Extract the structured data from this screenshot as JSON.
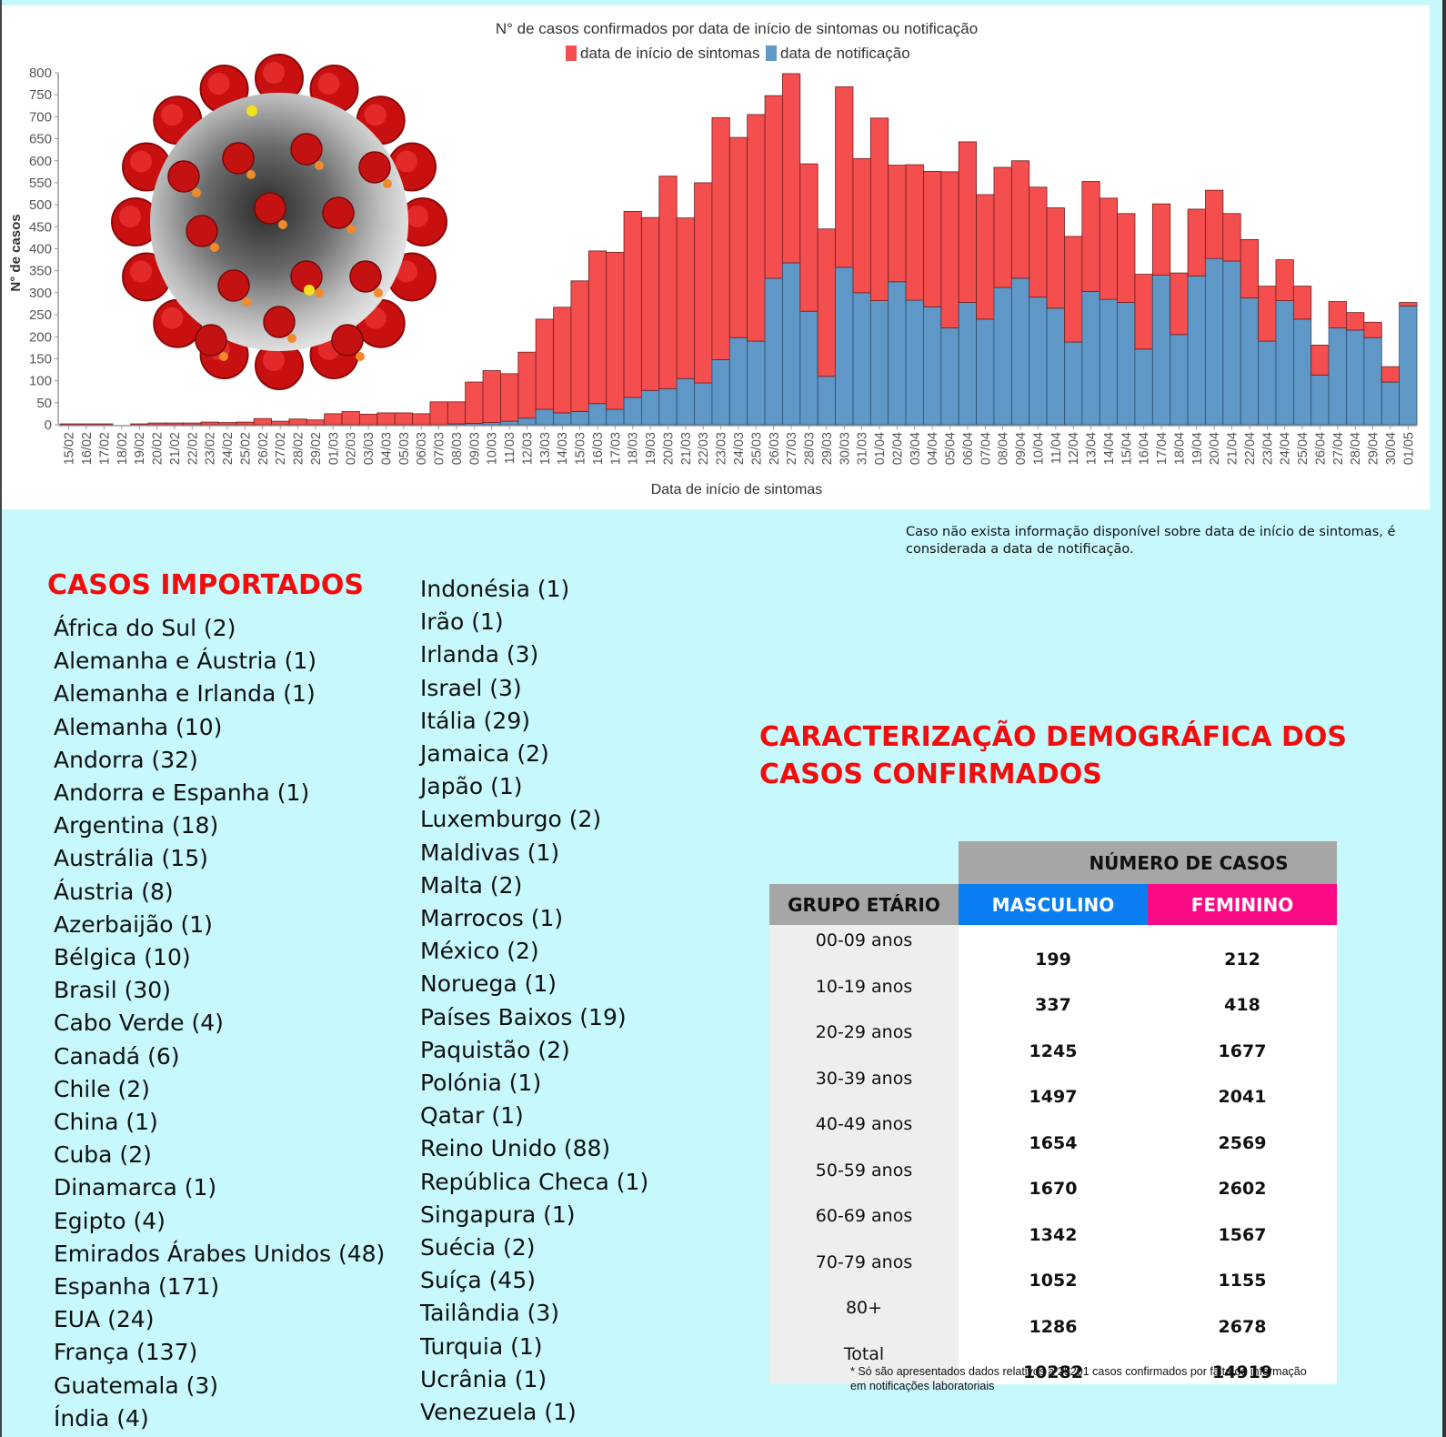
{
  "chart_data": {
    "type": "bar",
    "stacked": true,
    "title": "N° de casos confirmados por data de início de sintomas ou notificação",
    "xlabel": "Data de início de sintomas",
    "ylabel": "N° de casos",
    "ylim": [
      0,
      800
    ],
    "yticks": [
      0,
      50,
      100,
      150,
      200,
      250,
      300,
      350,
      400,
      450,
      500,
      550,
      600,
      650,
      700,
      750,
      800
    ],
    "grid": false,
    "legend_position": "top-center",
    "colors": {
      "sintomas": "#f44e4e",
      "notificacao": "#5f97c6"
    },
    "categories": [
      "15/02",
      "16/02",
      "17/02",
      "18/02",
      "19/02",
      "20/02",
      "21/02",
      "22/02",
      "23/02",
      "24/02",
      "25/02",
      "26/02",
      "27/02",
      "28/02",
      "29/02",
      "01/03",
      "02/03",
      "03/03",
      "04/03",
      "05/03",
      "06/03",
      "07/03",
      "08/03",
      "09/03",
      "10/03",
      "11/03",
      "12/03",
      "13/03",
      "14/03",
      "15/03",
      "16/03",
      "17/03",
      "18/03",
      "19/03",
      "20/03",
      "21/03",
      "22/03",
      "23/03",
      "24/03",
      "25/03",
      "26/03",
      "27/03",
      "28/03",
      "29/03",
      "30/03",
      "31/03",
      "01/04",
      "02/04",
      "03/04",
      "04/04",
      "05/04",
      "06/04",
      "07/04",
      "08/04",
      "09/04",
      "10/04",
      "11/04",
      "12/04",
      "13/04",
      "14/04",
      "15/04",
      "16/04",
      "17/04",
      "18/04",
      "19/04",
      "20/04",
      "21/04",
      "22/04",
      "23/04",
      "24/04",
      "25/04",
      "26/04",
      "27/04",
      "28/04",
      "29/04",
      "30/04",
      "01/05"
    ],
    "series": [
      {
        "name": "data de notificação",
        "values": [
          0,
          0,
          0,
          0,
          0,
          0,
          0,
          0,
          0,
          0,
          0,
          0,
          0,
          0,
          0,
          0,
          0,
          0,
          0,
          0,
          0,
          0,
          2,
          3,
          5,
          8,
          15,
          35,
          27,
          30,
          48,
          35,
          62,
          78,
          82,
          105,
          95,
          148,
          198,
          190,
          333,
          368,
          258,
          110,
          358,
          300,
          282,
          325,
          283,
          268,
          220,
          278,
          240,
          312,
          333,
          290,
          265,
          188,
          303,
          285,
          278,
          172,
          340,
          205,
          338,
          378,
          372,
          288,
          190,
          282,
          240,
          113,
          220,
          215,
          198,
          97,
          270
        ]
      },
      {
        "name": "data de início de sintomas",
        "values": [
          2,
          2,
          2,
          0,
          2,
          4,
          4,
          4,
          6,
          5,
          6,
          14,
          8,
          13,
          11,
          25,
          30,
          24,
          27,
          27,
          25,
          52,
          50,
          94,
          118,
          108,
          150,
          205,
          240,
          297,
          347,
          357,
          423,
          393,
          483,
          365,
          455,
          550,
          455,
          515,
          415,
          430,
          335,
          335,
          410,
          305,
          415,
          265,
          308,
          308,
          355,
          365,
          283,
          273,
          267,
          250,
          228,
          240,
          250,
          230,
          202,
          170,
          162,
          140,
          152,
          155,
          108,
          133,
          125,
          93,
          75,
          68,
          60,
          40,
          35,
          35,
          8
        ]
      }
    ]
  },
  "chart_labels": {
    "legend": [
      "data de início de sintomas",
      "data de notificação"
    ]
  },
  "note_top": "Caso não exista informação disponível sobre data de início de sintomas, é considerada a data de notificação.",
  "imported": {
    "title": "CASOS IMPORTADOS",
    "col1": [
      "África do Sul (2)",
      "Alemanha e Áustria (1)",
      "Alemanha e Irlanda (1)",
      "Alemanha (10)",
      "Andorra (32)",
      "Andorra e Espanha (1)",
      "Argentina (18)",
      "Austrália (15)",
      "Áustria (8)",
      "Azerbaijão (1)",
      "Bélgica (10)",
      "Brasil (30)",
      "Cabo Verde (4)",
      "Canadá (6)",
      "Chile (2)",
      "China (1)",
      "Cuba (2)",
      "Dinamarca (1)",
      "Egipto (4)",
      "Emirados Árabes Unidos (48)",
      "Espanha (171)",
      "EUA (24)",
      "França (137)",
      "Guatemala (3)",
      "Índia (4)"
    ],
    "col2": [
      "Indonésia (1)",
      "Irão (1)",
      "Irlanda (3)",
      "Israel (3)",
      "Itália (29)",
      "Jamaica (2)",
      "Japão (1)",
      "Luxemburgo (2)",
      "Maldivas (1)",
      "Malta (2)",
      "Marrocos (1)",
      "México (2)",
      "Noruega (1)",
      "Países Baixos (19)",
      "Paquistão (2)",
      "Polónia (1)",
      "Qatar (1)",
      "Reino Unido (88)",
      "República Checa (1)",
      "Singapura (1)",
      "Suécia (2)",
      "Suíça (45)",
      "Tailândia (3)",
      "Turquia (1)",
      "Ucrânia (1)",
      "Venezuela (1)"
    ]
  },
  "demographics": {
    "title_line1": "CARACTERIZAÇÃO DEMOGRÁFICA DOS",
    "title_line2": "CASOS CONFIRMADOS",
    "header_cases": "NÚMERO DE CASOS",
    "header_age": "GRUPO ETÁRIO",
    "header_male": "MASCULINO",
    "header_female": "FEMININO",
    "colors": {
      "male": "#0a7ef0",
      "female": "#fb0a86"
    },
    "rows": [
      {
        "age": "00-09 anos",
        "male": "199",
        "female": "212"
      },
      {
        "age": "10-19 anos",
        "male": "337",
        "female": "418"
      },
      {
        "age": "20-29 anos",
        "male": "1245",
        "female": "1677"
      },
      {
        "age": "30-39 anos",
        "male": "1497",
        "female": "2041"
      },
      {
        "age": "40-49 anos",
        "male": "1654",
        "female": "2569"
      },
      {
        "age": "50-59 anos",
        "male": "1670",
        "female": "2602"
      },
      {
        "age": "60-69 anos",
        "male": "1342",
        "female": "1567"
      },
      {
        "age": "70-79 anos",
        "male": "1052",
        "female": "1155"
      },
      {
        "age": "80+",
        "male": "1286",
        "female": "2678"
      },
      {
        "age": "Total",
        "male": "10282",
        "female": "14919"
      }
    ],
    "footnote": "* Só são apresentados dados relativos a 25201 casos confirmados por falta de informação em notificações laboratoriais"
  }
}
